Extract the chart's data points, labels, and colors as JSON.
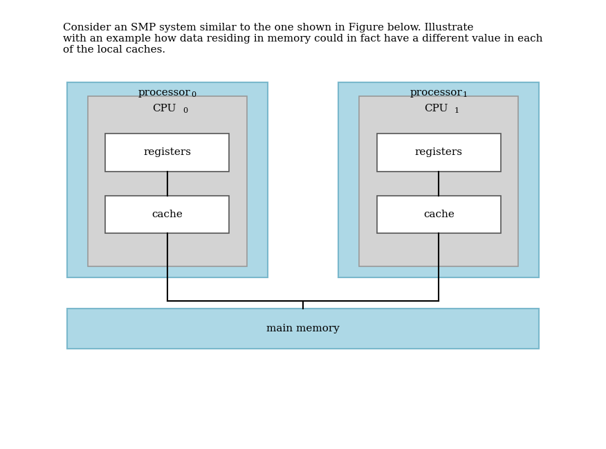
{
  "title_text": "Consider an SMP system similar to the one shown in Figure below. Illustrate\nwith an example how data residing in memory could in fact have a different value in each\nof the local caches.",
  "background_color": "#ffffff",
  "light_blue": "#add8e6",
  "light_gray": "#d3d3d3",
  "white": "#ffffff",
  "black": "#000000",
  "processor0_label": "processor",
  "processor0_sub": "0",
  "processor1_label": "processor",
  "processor1_sub": "1",
  "cpu0_label": "CPU",
  "cpu0_sub": "0",
  "cpu1_label": "CPU",
  "cpu1_sub": "1",
  "registers_label": "registers",
  "cache_label": "cache",
  "memory_label": "main memory",
  "title_fontsize": 11,
  "label_fontsize": 11,
  "sub_fontsize": 8
}
